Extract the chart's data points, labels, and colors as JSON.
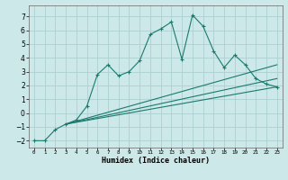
{
  "xlabel": "Humidex (Indice chaleur)",
  "ylabel": "",
  "background_color": "#cce8e8",
  "line_color": "#1a7a6e",
  "grid_color": "#aed0d0",
  "xlim": [
    -0.5,
    23.5
  ],
  "ylim": [
    -2.5,
    7.8
  ],
  "xticks": [
    0,
    1,
    2,
    3,
    4,
    5,
    6,
    7,
    8,
    9,
    10,
    11,
    12,
    13,
    14,
    15,
    16,
    17,
    18,
    19,
    20,
    21,
    22,
    23
  ],
  "yticks": [
    -2,
    -1,
    0,
    1,
    2,
    3,
    4,
    5,
    6,
    7
  ],
  "line1_x": [
    0,
    1,
    2,
    3,
    4,
    5,
    6,
    7,
    8,
    9,
    10,
    11,
    12,
    13,
    14,
    15,
    16,
    17,
    18,
    19,
    20,
    21,
    22,
    23
  ],
  "line1_y": [
    -2.0,
    -2.0,
    -1.2,
    -0.8,
    -0.5,
    0.5,
    2.8,
    3.5,
    2.7,
    3.0,
    3.8,
    5.7,
    6.1,
    6.6,
    3.9,
    7.1,
    6.3,
    4.5,
    3.3,
    4.2,
    3.5,
    2.5,
    2.1,
    1.9
  ],
  "line2_x": [
    3,
    23
  ],
  "line2_y": [
    -0.8,
    1.9
  ],
  "line3_x": [
    3,
    23
  ],
  "line3_y": [
    -0.8,
    3.5
  ],
  "line4_x": [
    3,
    23
  ],
  "line4_y": [
    -0.8,
    2.5
  ],
  "marker": "+"
}
